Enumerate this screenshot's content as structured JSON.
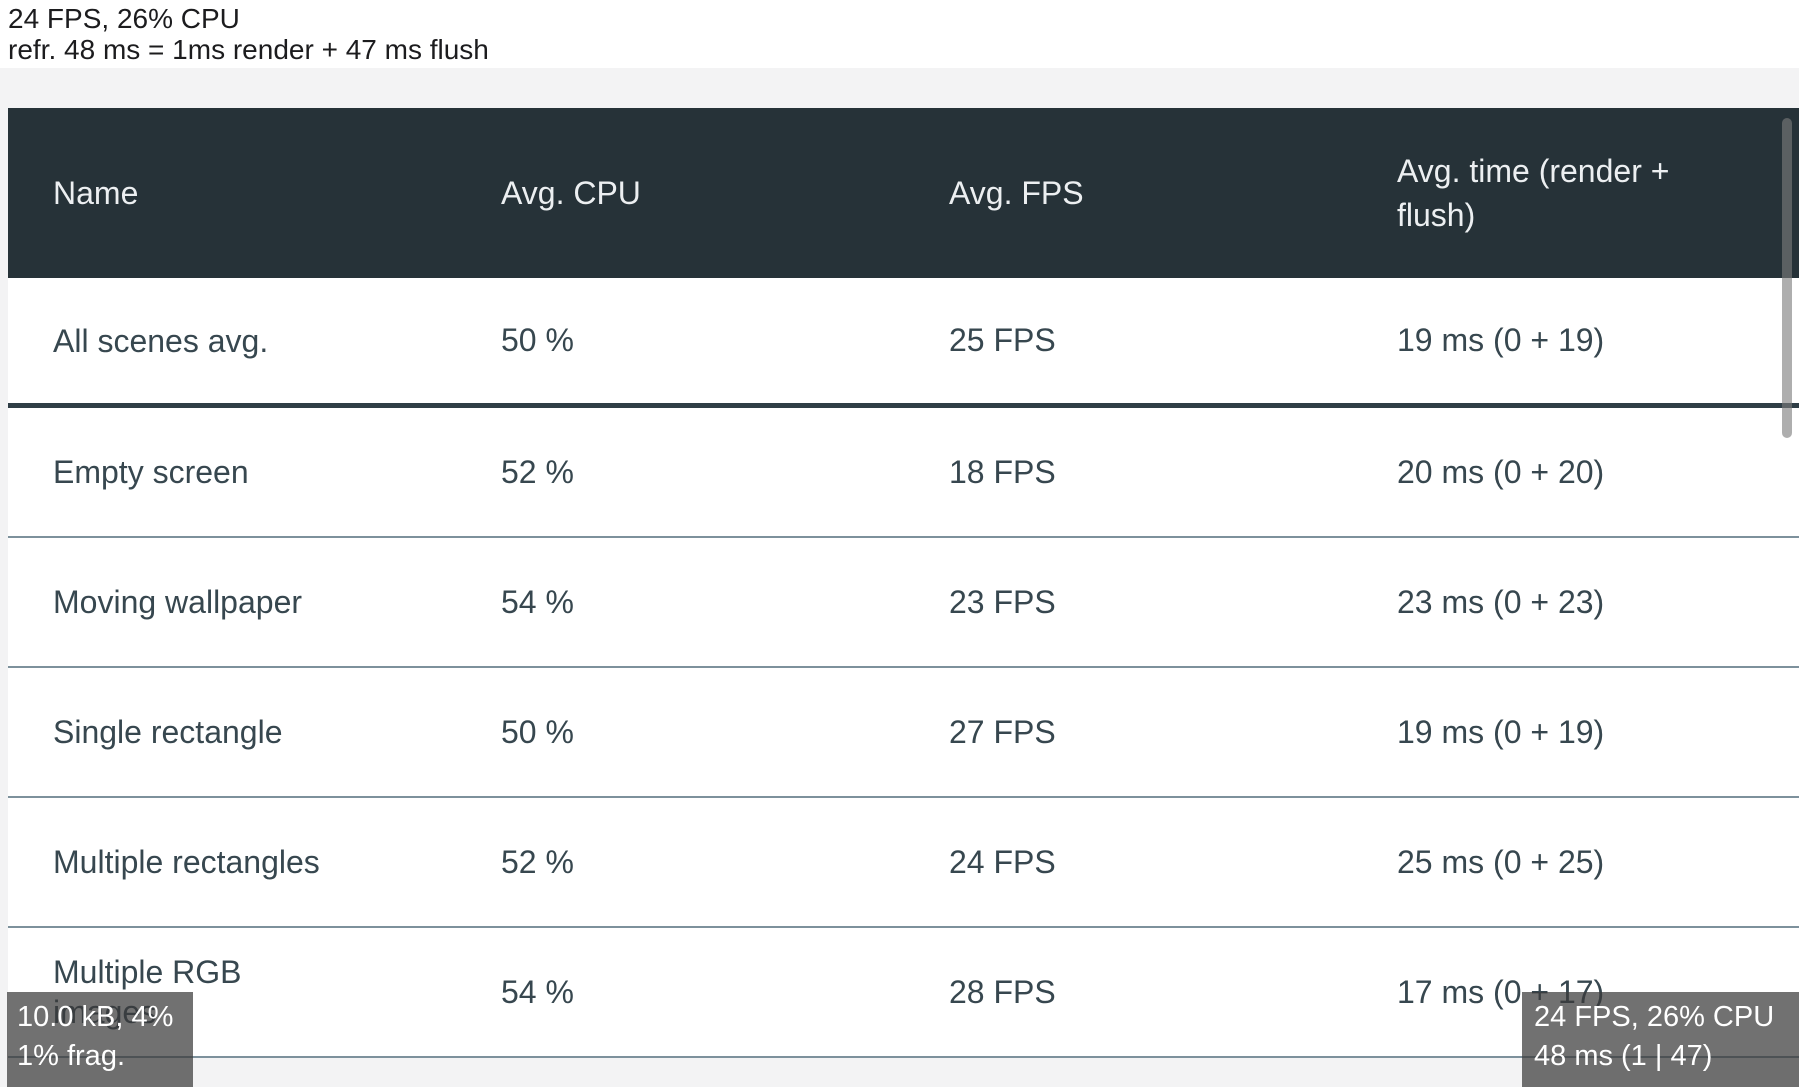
{
  "status_text": {
    "line1": "24 FPS, 26% CPU",
    "line2": "refr. 48 ms = 1ms render + 47 ms flush"
  },
  "table": {
    "columns": [
      "Name",
      "Avg. CPU",
      "Avg. FPS",
      "Avg. time (render + flush)"
    ],
    "rows": [
      {
        "name": "All scenes avg.",
        "cpu": "50 %",
        "fps": "25 FPS",
        "time": "19 ms (0 + 19)"
      },
      {
        "name": "Empty screen",
        "cpu": "52 %",
        "fps": "18 FPS",
        "time": "20 ms (0 + 20)"
      },
      {
        "name": "Moving wallpaper",
        "cpu": "54 %",
        "fps": "23 FPS",
        "time": "23 ms (0 + 23)"
      },
      {
        "name": "Single rectangle",
        "cpu": "50 %",
        "fps": "27 FPS",
        "time": "19 ms (0 + 19)"
      },
      {
        "name": "Multiple rectangles",
        "cpu": "52 %",
        "fps": "24 FPS",
        "time": "25 ms (0 + 25)"
      },
      {
        "name": "Multiple RGB images",
        "cpu": "54 %",
        "fps": "28 FPS",
        "time": "17 ms (0 + 17)"
      }
    ]
  },
  "memory_overlay": {
    "line1": "10.0 kB, 4%",
    "line2": "1% frag."
  },
  "fps_overlay": {
    "line1": "24 FPS, 26% CPU",
    "line2": "48 ms (1 | 47)"
  },
  "colors": {
    "header_bg": "#263238",
    "header_text": "#eceff1",
    "cell_text": "#37474F",
    "divider": "#7d919c",
    "divider_strong": "#2f3e46",
    "page_bg": "#f3f3f4",
    "overlay_bg": "rgba(58,58,58,0.72)",
    "scrollbar": "rgba(125,125,125,0.62)"
  }
}
